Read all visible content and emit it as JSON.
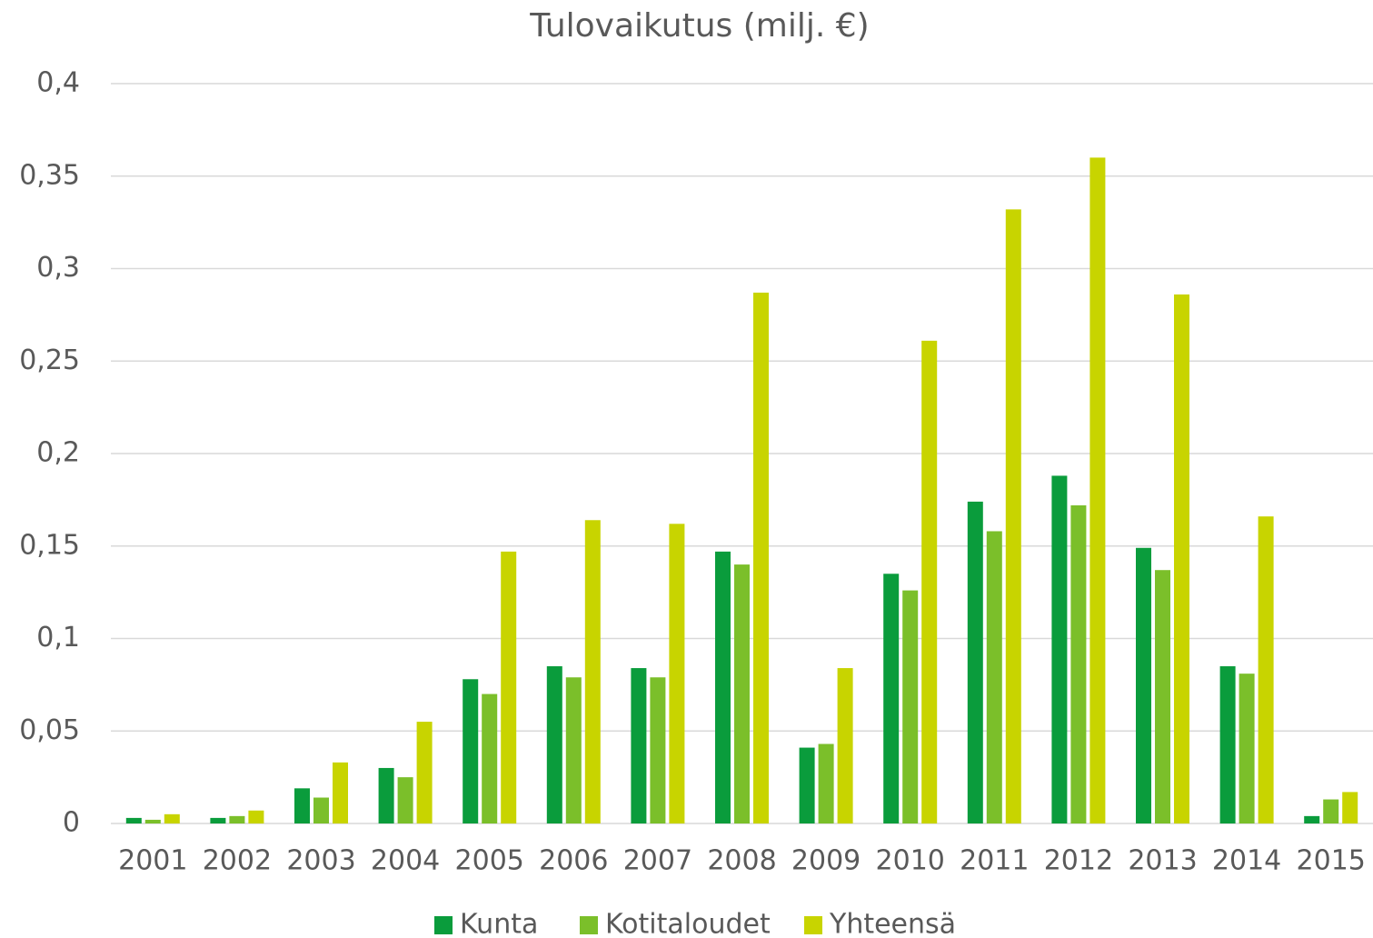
{
  "chart_data": {
    "type": "bar",
    "title": "Tulovaikutus (milj. €)",
    "categories": [
      "2001",
      "2002",
      "2003",
      "2004",
      "2005",
      "2006",
      "2007",
      "2008",
      "2009",
      "2010",
      "2011",
      "2012",
      "2013",
      "2014",
      "2015"
    ],
    "series": [
      {
        "name": "Kunta",
        "color": "#0a9c3c",
        "values": [
          0.003,
          0.003,
          0.019,
          0.03,
          0.078,
          0.085,
          0.084,
          0.147,
          0.041,
          0.135,
          0.174,
          0.188,
          0.149,
          0.085,
          0.004
        ]
      },
      {
        "name": "Kotitaloudet",
        "color": "#7bbf2a",
        "values": [
          0.002,
          0.004,
          0.014,
          0.025,
          0.07,
          0.079,
          0.079,
          0.14,
          0.043,
          0.126,
          0.158,
          0.172,
          0.137,
          0.081,
          0.013
        ]
      },
      {
        "name": "Yhteensä",
        "color": "#c8d400",
        "values": [
          0.005,
          0.007,
          0.033,
          0.055,
          0.147,
          0.164,
          0.162,
          0.287,
          0.084,
          0.261,
          0.332,
          0.36,
          0.286,
          0.166,
          0.017
        ]
      }
    ],
    "ylim": [
      0,
      0.4
    ],
    "yticks": [
      0,
      {
        "value": 0.05,
        "label": "0,05"
      },
      {
        "value": 0.1,
        "label": "0,1"
      },
      {
        "value": 0.15,
        "label": "0,15"
      },
      {
        "value": 0.2,
        "label": "0,2"
      },
      {
        "value": 0.25,
        "label": "0,25"
      },
      {
        "value": 0.3,
        "label": "0,3"
      },
      {
        "value": 0.35,
        "label": "0,35"
      },
      {
        "value": 0.4,
        "label": "0,4"
      }
    ],
    "grid": true,
    "legend": "bottom"
  }
}
